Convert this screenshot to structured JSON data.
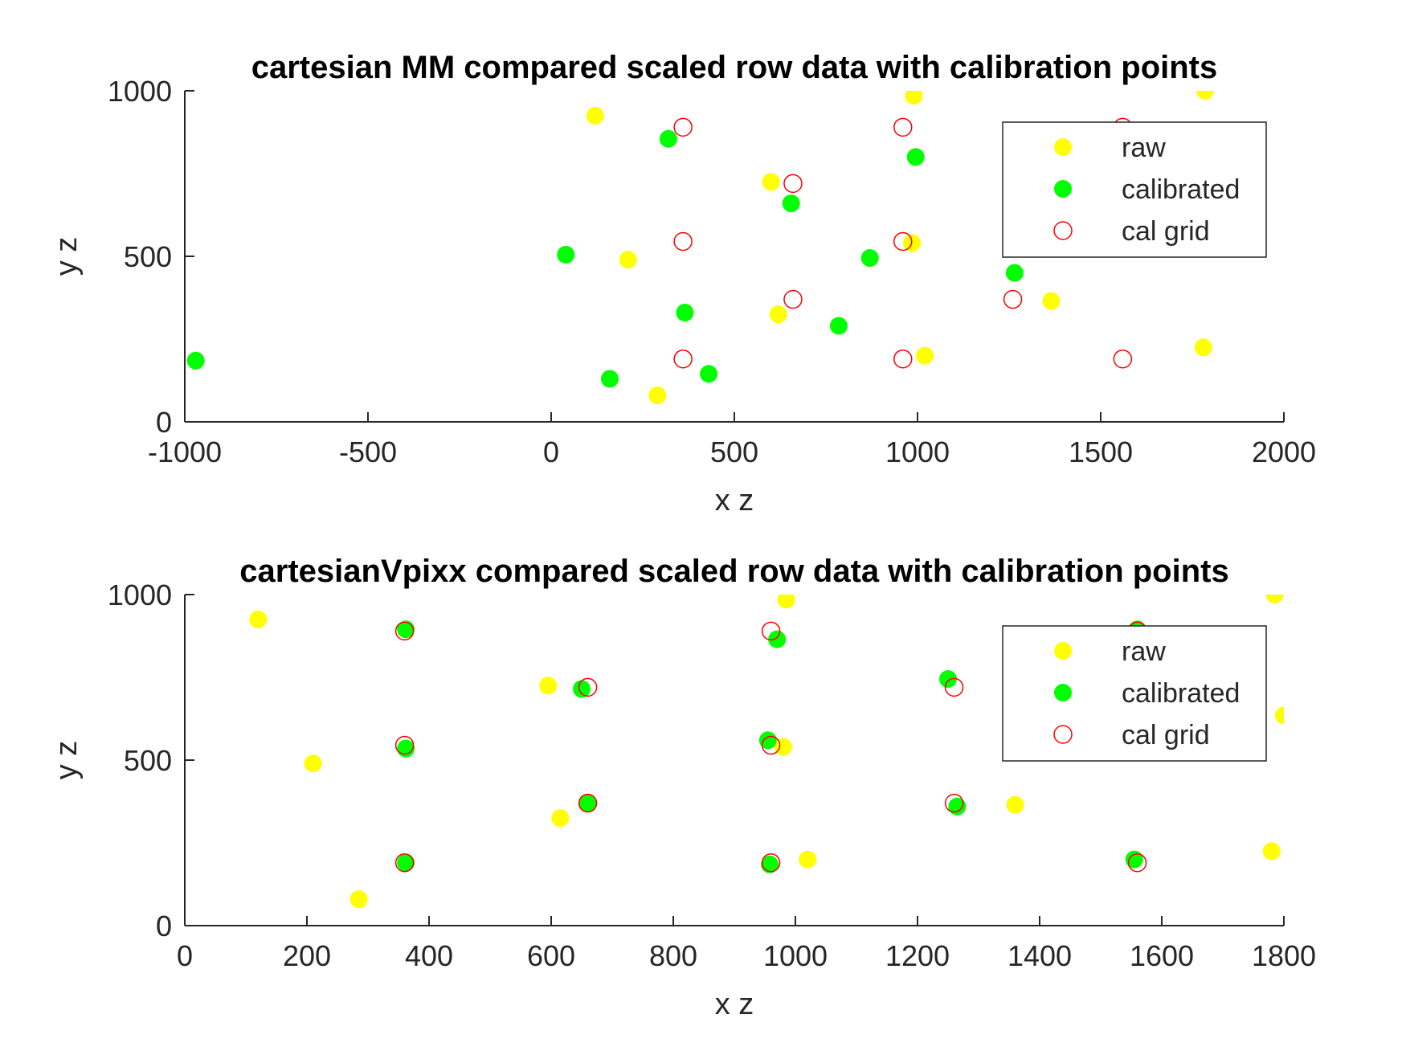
{
  "colors": {
    "raw": "#ffff00",
    "calibrated": "#00ff00",
    "cal_grid": "#ff0000",
    "axis": "#262626"
  },
  "chart_data": [
    {
      "type": "scatter",
      "title": "cartesian MM compared scaled row data with calibration points",
      "xlabel": "x z",
      "ylabel": "y z",
      "xlim": [
        -1000,
        2000
      ],
      "ylim": [
        0,
        1000
      ],
      "xticks": [
        -1000,
        -500,
        0,
        500,
        1000,
        1500,
        2000
      ],
      "yticks": [
        0,
        500,
        1000
      ],
      "grid": false,
      "legend_position": "top-right",
      "series": [
        {
          "name": "raw",
          "marker": "filled-circle",
          "x": [
            120,
            290,
            210,
            600,
            620,
            985,
            990,
            1020,
            1365,
            1780,
            1785
          ],
          "y": [
            925,
            80,
            490,
            725,
            325,
            540,
            985,
            200,
            365,
            225,
            1000
          ]
        },
        {
          "name": "calibrated",
          "marker": "filled-circle",
          "x": [
            -970,
            40,
            160,
            320,
            365,
            430,
            655,
            785,
            870,
            995,
            1265
          ],
          "y": [
            185,
            505,
            130,
            855,
            330,
            145,
            660,
            290,
            495,
            800,
            450
          ]
        },
        {
          "name": "cal grid",
          "marker": "open-circle",
          "x": [
            360,
            360,
            360,
            660,
            660,
            960,
            960,
            960,
            1260,
            1560,
            1560
          ],
          "y": [
            890,
            545,
            190,
            720,
            370,
            890,
            545,
            190,
            370,
            890,
            190
          ]
        }
      ]
    },
    {
      "type": "scatter",
      "title": "cartesianVpixx compared scaled row data with calibration points",
      "xlabel": "x z",
      "ylabel": "y z",
      "xlim": [
        0,
        1800
      ],
      "ylim": [
        0,
        1000
      ],
      "xticks": [
        0,
        200,
        400,
        600,
        800,
        1000,
        1200,
        1400,
        1600,
        1800
      ],
      "yticks": [
        0,
        500,
        1000
      ],
      "grid": false,
      "legend_position": "top-right",
      "series": [
        {
          "name": "raw",
          "marker": "filled-circle",
          "x": [
            120,
            210,
            285,
            595,
            615,
            980,
            985,
            1020,
            1360,
            1780,
            1785,
            1800
          ],
          "y": [
            925,
            490,
            80,
            725,
            325,
            540,
            985,
            200,
            365,
            225,
            1000,
            635
          ]
        },
        {
          "name": "calibrated",
          "marker": "filled-circle",
          "x": [
            362,
            362,
            362,
            650,
            660,
            955,
            958,
            970,
            1250,
            1265,
            1555,
            1560
          ],
          "y": [
            895,
            535,
            190,
            715,
            370,
            560,
            185,
            865,
            745,
            360,
            200,
            895
          ]
        },
        {
          "name": "cal grid",
          "marker": "open-circle",
          "x": [
            360,
            360,
            360,
            660,
            660,
            960,
            960,
            960,
            1260,
            1260,
            1560,
            1560
          ],
          "y": [
            890,
            545,
            190,
            720,
            370,
            890,
            545,
            190,
            720,
            370,
            890,
            190
          ]
        }
      ]
    }
  ]
}
